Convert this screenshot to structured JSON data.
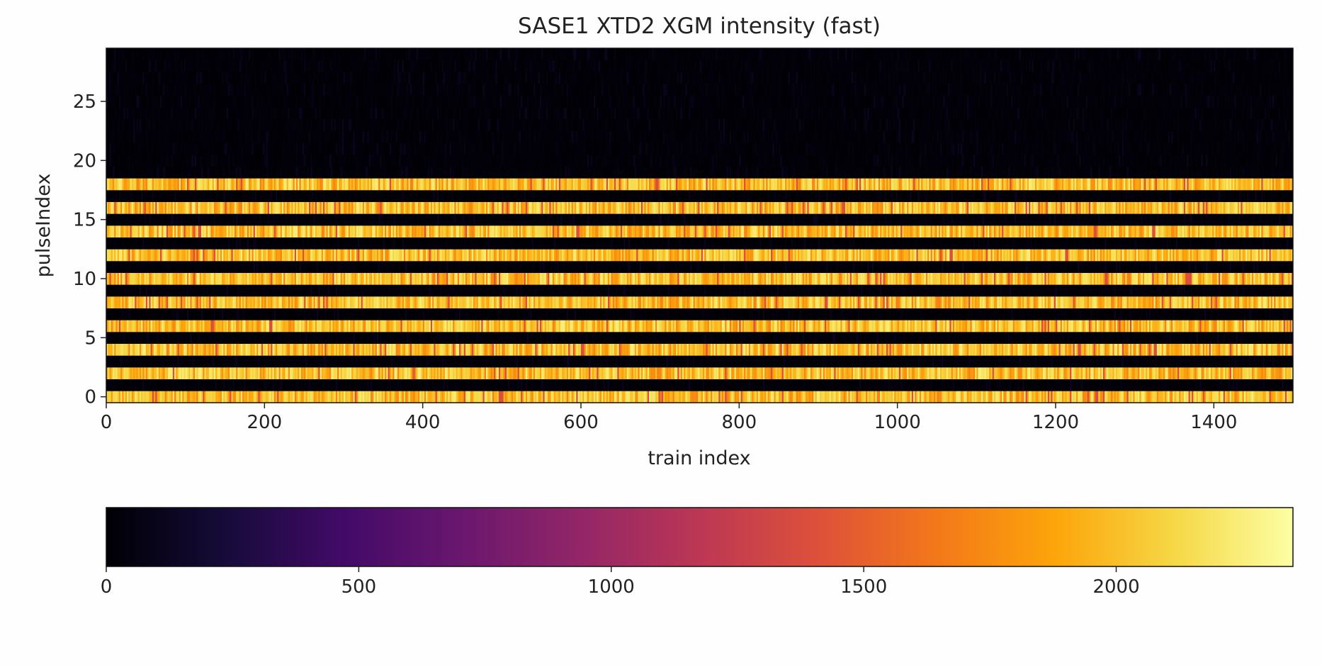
{
  "chart_data": {
    "type": "heatmap",
    "title": "SASE1 XTD2 XGM intensity (fast)",
    "xlabel": "train index",
    "ylabel": "pulseIndex",
    "xlim": [
      0,
      1500
    ],
    "ylim": [
      -0.5,
      29.5
    ],
    "x_ticks": [
      0,
      200,
      400,
      600,
      800,
      1000,
      1200,
      1400
    ],
    "y_ticks": [
      0,
      5,
      10,
      15,
      20,
      25
    ],
    "n_trains": 1500,
    "n_pulses": 30,
    "active_pulses": [
      0,
      2,
      4,
      6,
      8,
      10,
      12,
      14,
      16,
      18
    ],
    "active_intensity_range": [
      1500,
      2250
    ],
    "inactive_intensity_range": [
      0,
      120
    ],
    "colormap": "inferno",
    "colorbar": {
      "range": [
        0,
        2350
      ],
      "ticks": [
        0,
        500,
        1000,
        1500,
        2000
      ],
      "orientation": "horizontal",
      "placement": "bottom"
    },
    "grid": false
  }
}
